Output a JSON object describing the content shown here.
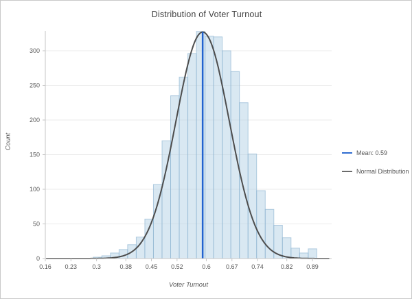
{
  "window": {
    "background": "#ffffff",
    "border_color": "#c9c9c9"
  },
  "chart_data": {
    "type": "bar",
    "subtype": "histogram-with-normal-curve",
    "title": "Distribution of Voter Turnout",
    "xlabel": "Voter Turnout",
    "ylabel": "Count",
    "xlim": [
      0.16,
      0.94
    ],
    "ylim": [
      0,
      330
    ],
    "x_tick_values": [
      0.16,
      0.23,
      0.3,
      0.38,
      0.45,
      0.52,
      0.6,
      0.67,
      0.74,
      0.82,
      0.89
    ],
    "x_tick_labels": [
      "0.16",
      "0.23",
      "0.3",
      "0.38",
      "0.45",
      "0.52",
      "0.6",
      "0.67",
      "0.74",
      "0.82",
      "0.89"
    ],
    "y_tick_values": [
      0,
      50,
      100,
      150,
      200,
      250,
      300
    ],
    "y_tick_labels": [
      "0",
      "50",
      "100",
      "150",
      "200",
      "250",
      "300"
    ],
    "grid": "horizontal-only",
    "bins": {
      "start": 0.291,
      "width": 0.0235,
      "counts": [
        2,
        4,
        8,
        13,
        20,
        31,
        57,
        107,
        170,
        235,
        262,
        296,
        328,
        321,
        320,
        300,
        270,
        225,
        151,
        98,
        71,
        48,
        30,
        15,
        8,
        14
      ]
    },
    "normal_curve": {
      "mean": 0.59,
      "sigma": 0.073,
      "peak_count": 327
    },
    "mean_line": {
      "x": 0.59
    },
    "legend": {
      "position": "right-middle",
      "items": [
        {
          "label": "Mean: 0.59",
          "color": "#2e6bd0",
          "shape": "line"
        },
        {
          "label": "Normal Distribution",
          "color": "#6b6b6b",
          "shape": "line"
        }
      ]
    },
    "colors": {
      "bar_fill": "rgba(180,209,230,0.5)",
      "bar_border": "rgba(141,180,209,0.65)",
      "curve": "#4d4d4d",
      "mean_line": "#2163cf",
      "grid": "#ebebeb",
      "axis": "#c6c6c6",
      "tick_text": "#595959",
      "title_text": "#404040"
    }
  }
}
